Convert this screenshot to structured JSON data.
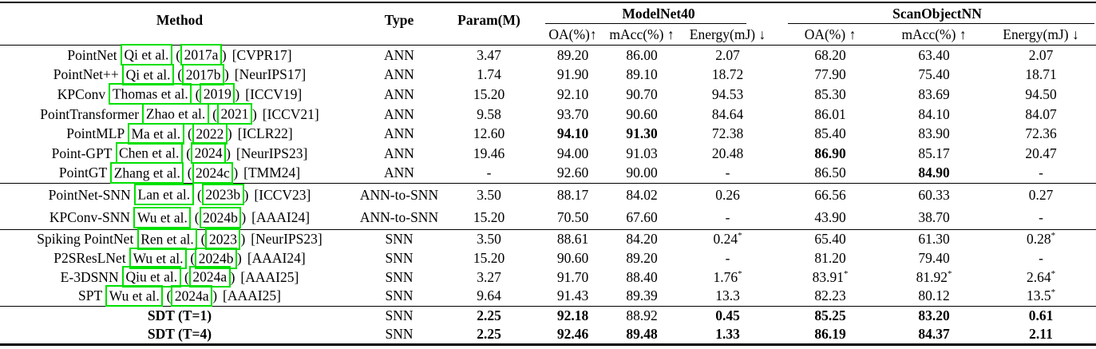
{
  "annotation_box_color": "#00e000",
  "table": {
    "headers": {
      "method": "Method",
      "type": "Type",
      "param": "Param(M)",
      "groups": [
        {
          "label": "ModelNet40",
          "cols": [
            "OA(%)↑",
            "mAcc(%) ↑",
            "Energy(mJ) ↓"
          ]
        },
        {
          "label": "ScanObjectNN",
          "cols": [
            "OA(%) ↑",
            "mAcc(%) ↑",
            "Energy(mJ) ↓"
          ]
        }
      ]
    },
    "column_keys": [
      "param",
      "modelnet40-oa",
      "modelnet40-macc",
      "modelnet40-energy",
      "scanobjectnn-oa",
      "scanobjectnn-macc",
      "scanobjectnn-energy"
    ],
    "groups": [
      {
        "name": "ann-methods",
        "rows": [
          {
            "method_name": "PointNet",
            "citation_authors": "Qi et al.",
            "citation_year": "2017a",
            "venue": "[CVPR17]",
            "type": "ANN",
            "values": [
              "3.47",
              "89.20",
              "86.00",
              "2.07",
              "68.20",
              "63.40",
              "2.07"
            ],
            "bold_values": [],
            "bold_method": false
          },
          {
            "method_name": "PointNet++",
            "citation_authors": "Qi et al.",
            "citation_year": "2017b",
            "venue": "[NeurIPS17]",
            "type": "ANN",
            "values": [
              "1.74",
              "91.90",
              "89.10",
              "18.72",
              "77.90",
              "75.40",
              "18.71"
            ],
            "bold_values": [],
            "bold_method": false
          },
          {
            "method_name": "KPConv",
            "citation_authors": "Thomas et al.",
            "citation_year": "2019",
            "venue": "[ICCV19]",
            "type": "ANN",
            "values": [
              "15.20",
              "92.10",
              "90.70",
              "94.53",
              "85.30",
              "83.69",
              "94.50"
            ],
            "bold_values": [],
            "bold_method": false
          },
          {
            "method_name": "PointTransformer",
            "citation_authors": "Zhao et al.",
            "citation_year": "2021",
            "venue": "[ICCV21]",
            "type": "ANN",
            "values": [
              "9.58",
              "93.70",
              "90.60",
              "84.64",
              "86.01",
              "84.10",
              "84.07"
            ],
            "bold_values": [],
            "bold_method": false
          },
          {
            "method_name": "PointMLP",
            "citation_authors": "Ma et al.",
            "citation_year": "2022",
            "venue": "[ICLR22]",
            "type": "ANN",
            "values": [
              "12.60",
              "94.10",
              "91.30",
              "72.38",
              "85.40",
              "83.90",
              "72.36"
            ],
            "bold_values": [
              1,
              2
            ],
            "bold_method": false
          },
          {
            "method_name": "Point-GPT",
            "citation_authors": "Chen et al.",
            "citation_year": "2024",
            "venue": "[NeurIPS23]",
            "type": "ANN",
            "values": [
              "19.46",
              "94.00",
              "91.03",
              "20.48",
              "86.90",
              "85.17",
              "20.47"
            ],
            "bold_values": [
              4
            ],
            "bold_method": false
          },
          {
            "method_name": "PointGT",
            "citation_authors": "Zhang et al.",
            "citation_year": "2024c",
            "venue": "[TMM24]",
            "type": "ANN",
            "values": [
              "-",
              "92.60",
              "90.00",
              "-",
              "86.50",
              "84.90",
              "-"
            ],
            "bold_values": [
              5
            ],
            "bold_method": false
          }
        ]
      },
      {
        "name": "ann-to-snn-methods",
        "rows": [
          {
            "method_name": "PointNet-SNN",
            "citation_authors": "Lan et al.",
            "citation_year": "2023b",
            "venue": "[ICCV23]",
            "type": "ANN-to-SNN",
            "values": [
              "3.50",
              "88.17",
              "84.02",
              "0.26",
              "66.56",
              "60.33",
              "0.27"
            ],
            "bold_values": [],
            "bold_method": false
          },
          {
            "method_name": "KPConv-SNN",
            "citation_authors": "Wu et al.",
            "citation_year": "2024b",
            "venue": "[AAAI24]",
            "type": "ANN-to-SNN",
            "values": [
              "15.20",
              "70.50",
              "67.60",
              "-",
              "43.90",
              "38.70",
              "-"
            ],
            "bold_values": [],
            "bold_method": false
          }
        ]
      },
      {
        "name": "snn-methods",
        "rows": [
          {
            "method_name": "Spiking PointNet",
            "citation_authors": "Ren et al.",
            "citation_year": "2023",
            "venue": "[NeurIPS23]",
            "type": "SNN",
            "values": [
              "3.50",
              "88.61",
              "84.20",
              "0.24*",
              "65.40",
              "61.30",
              "0.28*"
            ],
            "bold_values": [],
            "bold_method": false
          },
          {
            "method_name": "P2SResLNet",
            "citation_authors": "Wu et al.",
            "citation_year": "2024b",
            "venue": "[AAAI24]",
            "type": "SNN",
            "values": [
              "15.20",
              "90.60",
              "89.20",
              "-",
              "81.20",
              "79.40",
              "-"
            ],
            "bold_values": [],
            "bold_method": false
          },
          {
            "method_name": "E-3DSNN",
            "citation_authors": "Qiu et al.",
            "citation_year": "2024a",
            "venue": "[AAAI25]",
            "type": "SNN",
            "values": [
              "3.27",
              "91.70",
              "88.40",
              "1.76*",
              "83.91*",
              "81.92*",
              "2.64*"
            ],
            "bold_values": [],
            "bold_method": false
          },
          {
            "method_name": "SPT",
            "citation_authors": "Wu et al.",
            "citation_year": "2024a",
            "venue": "[AAAI25]",
            "type": "SNN",
            "values": [
              "9.64",
              "91.43",
              "89.39",
              "13.3",
              "82.23",
              "80.12",
              "13.5*"
            ],
            "bold_values": [],
            "bold_method": false
          }
        ]
      },
      {
        "name": "ours-sdt",
        "rows": [
          {
            "method_name": "SDT (T=1)",
            "citation_authors": null,
            "citation_year": null,
            "venue": null,
            "type": "SNN",
            "values": [
              "2.25",
              "92.18",
              "88.92",
              "0.45",
              "85.25",
              "83.20",
              "0.61"
            ],
            "bold_values": [
              0,
              1,
              3,
              4,
              5,
              6
            ],
            "bold_method": true
          },
          {
            "method_name": "SDT (T=4)",
            "citation_authors": null,
            "citation_year": null,
            "venue": null,
            "type": "SNN",
            "values": [
              "2.25",
              "92.46",
              "89.48",
              "1.33",
              "86.19",
              "84.37",
              "2.11"
            ],
            "bold_values": [
              0,
              1,
              2,
              3,
              4,
              5,
              6
            ],
            "bold_method": true
          }
        ]
      }
    ]
  }
}
